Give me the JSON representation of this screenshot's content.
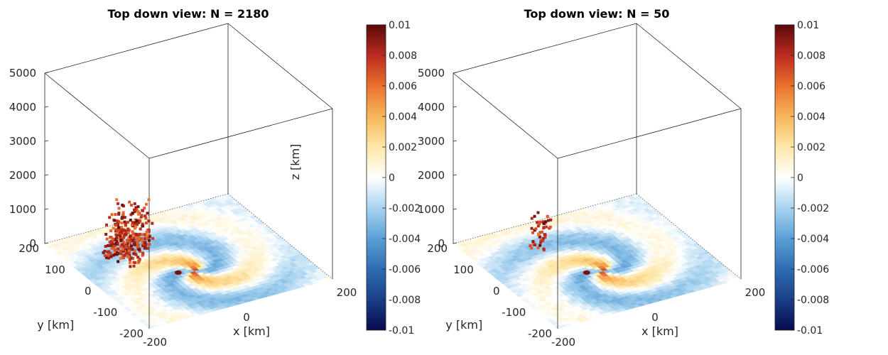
{
  "chart_data": [
    {
      "type": "scatter3d",
      "title": "Top down view: N = 2180",
      "xlabel": "x [km]",
      "ylabel": "y [km]",
      "zlabel": "z [km]",
      "xlim": [
        -200,
        200
      ],
      "ylim": [
        -200,
        200
      ],
      "zlim": [
        0,
        5000
      ],
      "x_ticks": [
        "-200",
        "0",
        "200"
      ],
      "y_ticks": [
        "-200",
        "-100",
        "0",
        "100",
        "200"
      ],
      "z_ticks": [
        "0",
        "1000",
        "2000",
        "3000",
        "4000",
        "5000"
      ],
      "colorbar": {
        "range": [
          -0.01,
          0.01
        ],
        "ticks": [
          "0.01",
          "0.008",
          "0.006",
          "0.004",
          "0.002",
          "0",
          "-0.002",
          "-0.004",
          "-0.006",
          "-0.008",
          "-0.01"
        ],
        "colormap": "blue-white-red"
      },
      "cluster": {
        "x_range": [
          -140,
          -10
        ],
        "y_range": [
          20,
          180
        ],
        "z_range": [
          0,
          1200
        ],
        "count": 2180
      }
    },
    {
      "type": "scatter3d",
      "title": "Top down view: N = 50",
      "xlabel": "x [km]",
      "ylabel": "y [km]",
      "zlabel": "",
      "xlim": [
        -200,
        200
      ],
      "ylim": [
        -200,
        200
      ],
      "zlim": [
        0,
        5000
      ],
      "x_ticks": [
        "-200",
        "0",
        "200"
      ],
      "y_ticks": [
        "-200",
        "-100",
        "0",
        "100",
        "200"
      ],
      "z_ticks": [
        "0",
        "1000",
        "2000",
        "3000",
        "4000",
        "5000"
      ],
      "colorbar": {
        "range": [
          -0.01,
          0.01
        ],
        "ticks": [
          "0.01",
          "0.008",
          "0.006",
          "0.004",
          "0.002",
          "0",
          "-0.002",
          "-0.004",
          "-0.006",
          "-0.008",
          "-0.01"
        ],
        "colormap": "blue-white-red"
      },
      "cluster": {
        "x_range": [
          -100,
          -40
        ],
        "y_range": [
          60,
          130
        ],
        "z_range": [
          200,
          1000
        ],
        "count": 50
      }
    }
  ]
}
